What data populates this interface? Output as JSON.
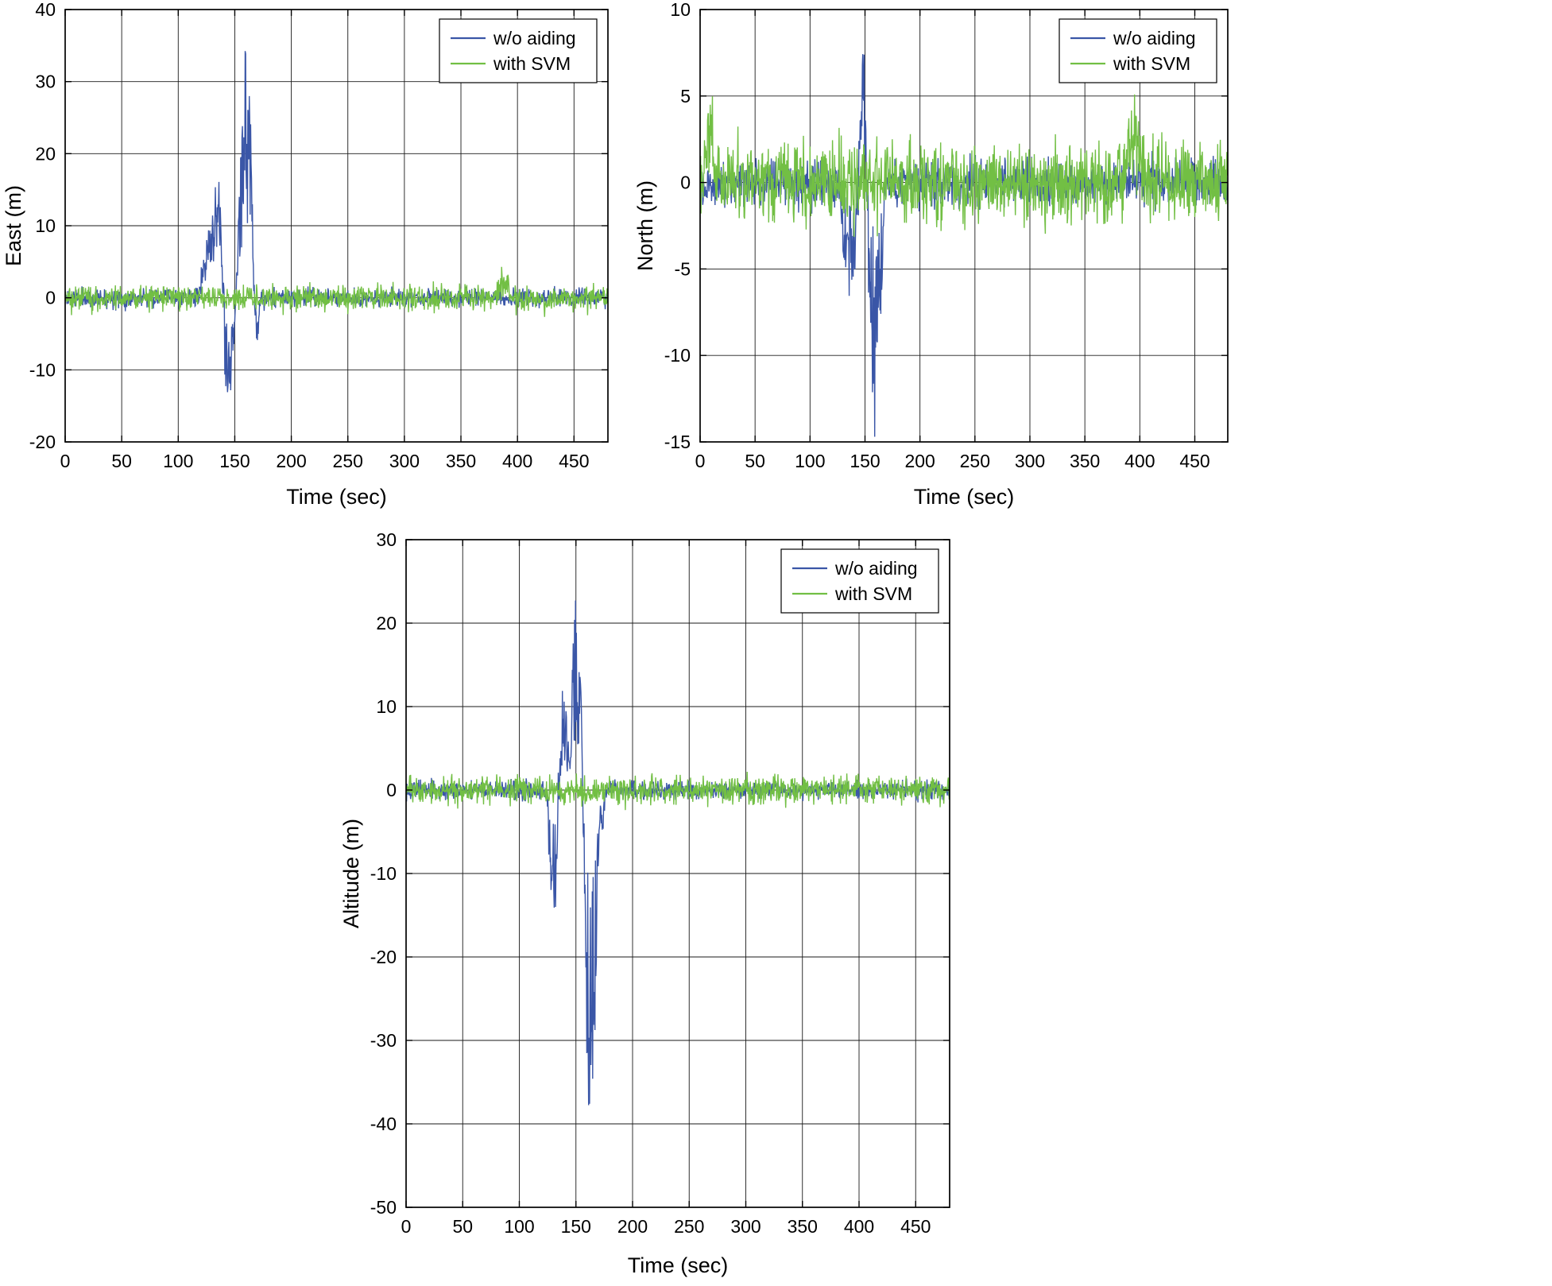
{
  "figure": {
    "background": "#ffffff",
    "description": "Three MATLAB-style position-error time series plots (East, North, Altitude) comparing INS without aiding vs with SVM aiding"
  },
  "colors": {
    "without_aiding": "#3a56a7",
    "with_svm": "#72bf44",
    "grid": "#1a1a1a",
    "axis": "#000000",
    "text": "#000000",
    "legend_background": "#ffffff"
  },
  "legend": {
    "labels": [
      "w/o aiding",
      "with SVM"
    ],
    "position": "top-right"
  },
  "chart_data": [
    {
      "id": "east",
      "type": "line",
      "title": "",
      "xlabel": "Time (sec)",
      "ylabel": "East (m)",
      "xlim": [
        0,
        480
      ],
      "ylim": [
        -20,
        40
      ],
      "xticks": [
        0,
        50,
        100,
        150,
        200,
        250,
        300,
        350,
        400,
        450
      ],
      "yticks": [
        -20,
        -10,
        0,
        10,
        20,
        30,
        40
      ],
      "grid": true,
      "legend_position": "top-right",
      "description": "East error: both series noise about +/-2 m around 0; w/o aiding diverges between 120 and 170 s reaching +12 m, -17 m and a peak near +36 m around 160 s",
      "series": [
        {
          "name": "w/o aiding",
          "color_key": "without_aiding",
          "seed": 11,
          "baseline_noise": 1.1,
          "spikes": [
            {
              "t_start": 118,
              "t_end": 140,
              "peak": 11
            },
            {
              "t_start": 130,
              "t_end": 142,
              "peak": 12
            },
            {
              "t_start": 138,
              "t_end": 151,
              "peak": -17
            },
            {
              "t_start": 151,
              "t_end": 168,
              "peak": 36
            },
            {
              "t_start": 166,
              "t_end": 173,
              "peak": -6
            }
          ]
        },
        {
          "name": "with SVM",
          "color_key": "with_svm",
          "seed": 21,
          "baseline_noise": 1.5,
          "spikes": [
            {
              "t_start": 378,
              "t_end": 396,
              "peak": 3.4
            }
          ]
        }
      ]
    },
    {
      "id": "north",
      "type": "line",
      "title": "",
      "xlabel": "Time (sec)",
      "ylabel": "North (m)",
      "xlim": [
        0,
        480
      ],
      "ylim": [
        -15,
        10
      ],
      "xticks": [
        0,
        50,
        100,
        150,
        200,
        250,
        300,
        350,
        400,
        450
      ],
      "yticks": [
        -15,
        -10,
        -5,
        0,
        5,
        10
      ],
      "grid": true,
      "legend_position": "top-right",
      "description": "North error: with-SVM noise about +/-2.5 m throughout; w/o aiding spikes between 125 and 170 s to +7.5 m and down to -14 m",
      "series": [
        {
          "name": "w/o aiding",
          "color_key": "without_aiding",
          "seed": 12,
          "baseline_noise": 1.1,
          "spikes": [
            {
              "t_start": 126,
              "t_end": 146,
              "peak": -6.5
            },
            {
              "t_start": 143,
              "t_end": 153,
              "peak": 7.5
            },
            {
              "t_start": 150,
              "t_end": 168,
              "peak": -14
            }
          ]
        },
        {
          "name": "with SVM",
          "color_key": "with_svm",
          "seed": 22,
          "baseline_noise": 1.9,
          "spikes": [
            {
              "t_start": 0,
              "t_end": 16,
              "peak": 4.5
            },
            {
              "t_start": 385,
              "t_end": 406,
              "peak": 4.3
            }
          ]
        }
      ]
    },
    {
      "id": "altitude",
      "type": "line",
      "title": "",
      "xlabel": "Time (sec)",
      "ylabel": "Altitude (m)",
      "xlim": [
        0,
        480
      ],
      "ylim": [
        -50,
        30
      ],
      "xticks": [
        0,
        50,
        100,
        150,
        200,
        250,
        300,
        350,
        400,
        450
      ],
      "yticks": [
        -50,
        -40,
        -30,
        -20,
        -10,
        0,
        10,
        20,
        30
      ],
      "grid": true,
      "legend_position": "top-right",
      "description": "Altitude error: with-SVM noise about +/-2 m around 0; w/o aiding bursts between 125 and 175 s reaching -16 m, +12.5 m, +23 m and a deep excursion near -42 m around 160 s",
      "series": [
        {
          "name": "w/o aiding",
          "color_key": "without_aiding",
          "seed": 13,
          "baseline_noise": 0.9,
          "spikes": [
            {
              "t_start": 124,
              "t_end": 137,
              "peak": -16
            },
            {
              "t_start": 133,
              "t_end": 145,
              "peak": 12.5
            },
            {
              "t_start": 143,
              "t_end": 158,
              "peak": 23
            },
            {
              "t_start": 155,
              "t_end": 171,
              "peak": -42
            },
            {
              "t_start": 169,
              "t_end": 176,
              "peak": -6
            }
          ]
        },
        {
          "name": "with SVM",
          "color_key": "with_svm",
          "seed": 23,
          "baseline_noise": 1.4,
          "spikes": []
        }
      ]
    }
  ]
}
